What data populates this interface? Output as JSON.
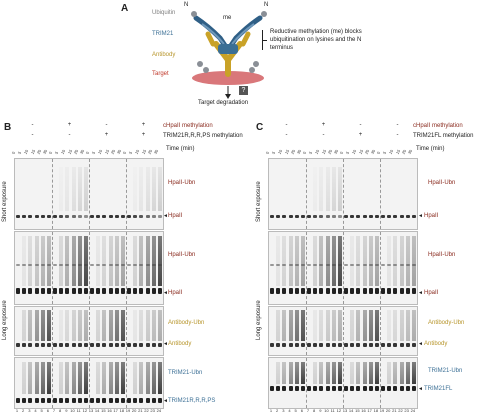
{
  "panelA": {
    "letter": "A",
    "legend": {
      "ubiquitin": "Ubiquitin",
      "trim21": "TRIM21",
      "antibody": "Antibody",
      "target": "Target"
    },
    "n_label": "N",
    "me_label": "me",
    "annotation": "Reductive methylation (me) blocks ubiquitination on lysines and the N terminus",
    "q_box": "?",
    "degradation": "Target degradation",
    "colors": {
      "ubiquitin": "#8a8f96",
      "trim21": "#3b6f95",
      "antibody": "#c9a227",
      "target": "#d9777a"
    }
  },
  "panelB": {
    "letter": "B",
    "row1_label": "cHpaII methylation",
    "row2_label": "TRIM21R,R,R,PS methylation",
    "row1_signs": [
      "-",
      "+",
      "-",
      "+"
    ],
    "row2_signs": [
      "-",
      "-",
      "+",
      "+"
    ],
    "time_label": "Time (min)",
    "time_ticks": [
      "0",
      "5",
      "10",
      "15",
      "20",
      "30"
    ],
    "short_exposure": "Short exposure",
    "long_exposure": "Long exposure",
    "labels": {
      "hpaii_ub_short": "HpaII-Ubn",
      "hpaii_short": "HpaII",
      "hpaii_ub_long": "HpaII-Ubn",
      "hpaii_long": "HpaII",
      "antibody_ub": "Antibody-Ubn",
      "antibody": "Antibody",
      "trim21_ub": "TRIM21-Ubn",
      "trim21": "TRIM21R,R,R,PS"
    },
    "lane_numbers": [
      "1",
      "2",
      "3",
      "4",
      "5",
      "6",
      "7",
      "8",
      "9",
      "10",
      "11",
      "12",
      "13",
      "14",
      "15",
      "16",
      "17",
      "18",
      "19",
      "20",
      "21",
      "22",
      "23",
      "24"
    ]
  },
  "panelC": {
    "letter": "C",
    "row1_label": "cHpaII methylation",
    "row2_label": "TRIM21FL methylation",
    "row1_signs": [
      "-",
      "+",
      "-",
      "-"
    ],
    "row2_signs": [
      "-",
      "-",
      "+",
      "-"
    ],
    "time_label": "Time (min)",
    "time_ticks": [
      "0",
      "5",
      "10",
      "15",
      "20",
      "30"
    ],
    "short_exposure": "Short exposure",
    "long_exposure": "Long exposure",
    "labels": {
      "hpaii_ub_short": "HpaII-Ubn",
      "hpaii_short": "HpaII",
      "hpaii_ub_long": "HpaII-Ubn",
      "hpaii_long": "HpaII",
      "antibody_ub": "Antibody-Ubn",
      "antibody": "Antibody",
      "trim21_ub": "TRIM21-Ubn",
      "trim21": "TRIM21FL"
    },
    "lane_numbers": [
      "1",
      "2",
      "3",
      "4",
      "5",
      "6",
      "7",
      "8",
      "9",
      "10",
      "11",
      "12",
      "13",
      "14",
      "15",
      "16",
      "17",
      "18",
      "19",
      "20",
      "21",
      "22",
      "23",
      "24"
    ]
  }
}
